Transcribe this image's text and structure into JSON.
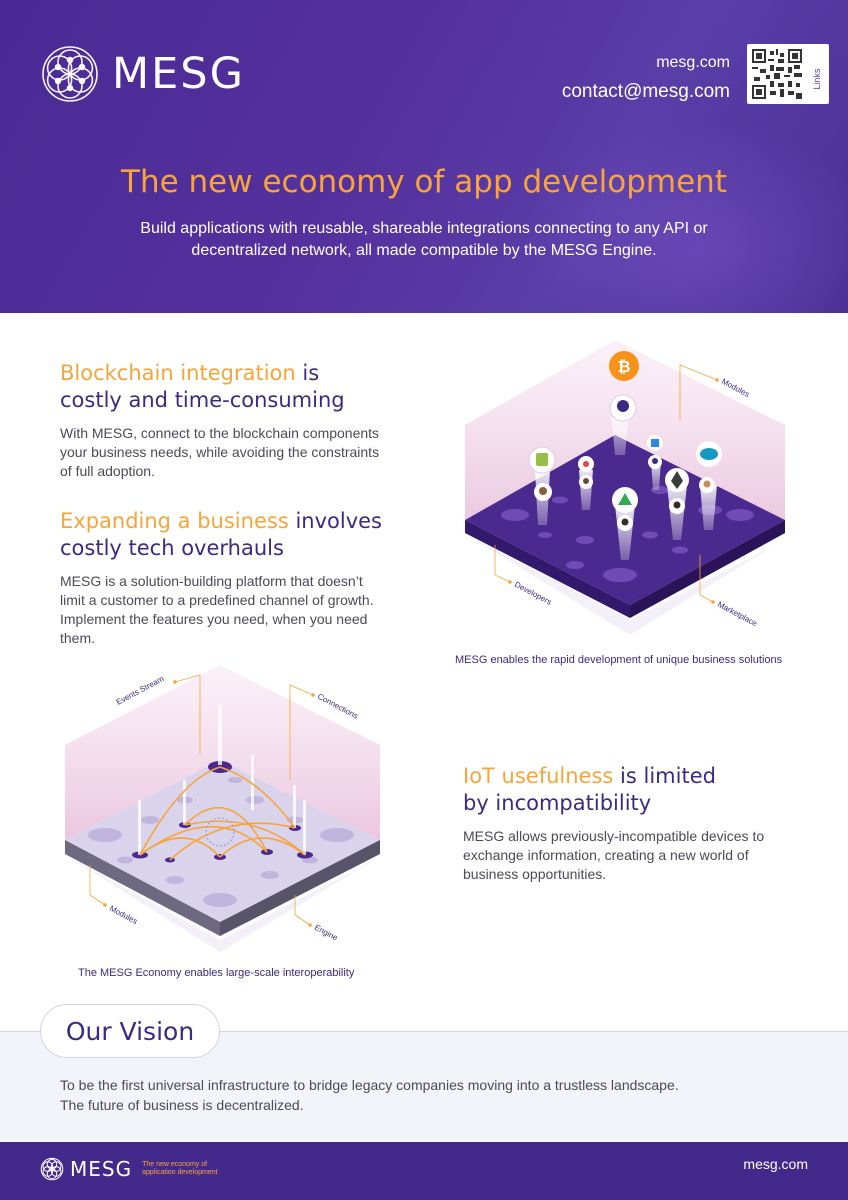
{
  "header": {
    "brand": "MESG",
    "website": "mesg.com",
    "email": "contact@mesg.com",
    "qr_label": "Links",
    "headline": "The new economy of app development",
    "subheadline": "Build applications with reusable, shareable integrations connecting to any API or decentralized network, all made compatible by the MESG Engine."
  },
  "sections": {
    "blockchain": {
      "title_highlight": "Blockchain integration",
      "title_rest": " is",
      "title_line2": "costly and time-consuming",
      "body": "With MESG, connect to the blockchain components your business needs, while avoiding the constraints of full adoption."
    },
    "expanding": {
      "title_highlight": "Expanding a business",
      "title_rest": " involves",
      "title_line2": "costly tech overhauls",
      "body": "MESG is a solution-building platform that doesn’t limit a customer to a predefined channel of growth. Implement the features you need, when you need them."
    },
    "iot": {
      "title_highlight": "IoT usefulness",
      "title_rest": " is limited",
      "title_line2": "by incompatibility",
      "body": "MESG allows previously-incompatible devices to exchange information, creating a new world of business opportunities."
    }
  },
  "illustrations": {
    "marketplace": {
      "caption": "MESG enables the rapid development of unique business solutions",
      "labels": {
        "modules": "Modules",
        "developers": "Developers",
        "marketplace": "Marketplace"
      }
    },
    "economy": {
      "caption": "The MESG Economy enables large-scale interoperability",
      "labels": {
        "events": "Events Stream",
        "connections": "Connections",
        "modules": "Modules",
        "engine": "Engine"
      }
    }
  },
  "vision": {
    "title": "Our Vision",
    "line1": "To be the first universal infrastructure to bridge legacy companies moving into a trustless landscape.",
    "line2": "The future of business is decentralized."
  },
  "footer": {
    "brand": "MESG",
    "tagline": "The new economy of application development",
    "website": "mesg.com"
  },
  "colors": {
    "brand_purple": "#4a2a94",
    "accent_orange": "#f7a53b",
    "heading_purple": "#3b2a84"
  }
}
